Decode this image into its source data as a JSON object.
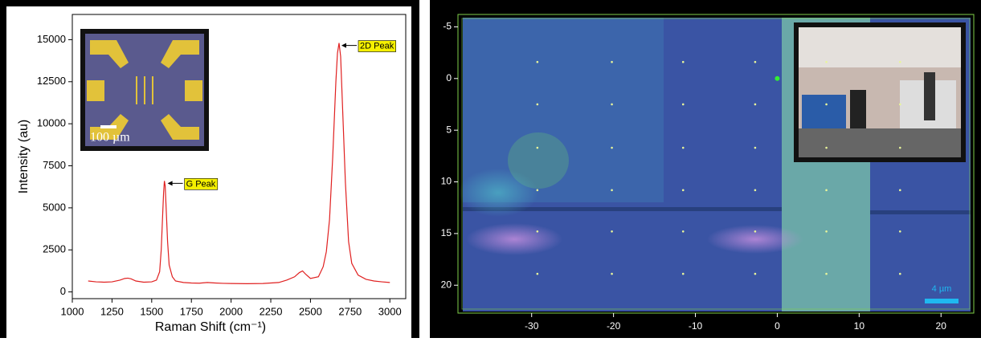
{
  "chart_data": [
    {
      "type": "line",
      "x_label": "Raman Shift (cm⁻¹)",
      "y_label": "Intensity (au)",
      "x": [
        1100,
        1150,
        1200,
        1250,
        1300,
        1330,
        1350,
        1370,
        1400,
        1450,
        1500,
        1530,
        1550,
        1560,
        1570,
        1575,
        1580,
        1585,
        1590,
        1600,
        1610,
        1630,
        1650,
        1700,
        1750,
        1800,
        1850,
        1900,
        1950,
        2000,
        2100,
        2200,
        2300,
        2350,
        2400,
        2430,
        2450,
        2470,
        2500,
        2550,
        2580,
        2600,
        2620,
        2640,
        2660,
        2670,
        2680,
        2690,
        2700,
        2720,
        2740,
        2760,
        2800,
        2850,
        2900,
        2950,
        3000
      ],
      "series": [
        {
          "color": "#e02020",
          "values": [
            650,
            600,
            580,
            600,
            700,
            800,
            820,
            780,
            650,
            580,
            600,
            700,
            1200,
            2500,
            4800,
            5900,
            6600,
            6300,
            5200,
            3000,
            1600,
            900,
            650,
            560,
            530,
            520,
            560,
            530,
            510,
            500,
            490,
            500,
            560,
            700,
            900,
            1150,
            1250,
            1050,
            800,
            900,
            1500,
            2400,
            4300,
            8000,
            12500,
            14200,
            14800,
            14000,
            11500,
            6500,
            3000,
            1700,
            1000,
            750,
            650,
            600,
            560
          ]
        }
      ],
      "xlim": [
        1000,
        3100
      ],
      "ylim": [
        -400,
        16500
      ],
      "xticks": [
        1000,
        1250,
        1500,
        1750,
        2000,
        2250,
        2500,
        2750,
        3000
      ],
      "yticks": [
        0,
        2500,
        5000,
        7500,
        10000,
        12500,
        15000
      ],
      "annotations": [
        {
          "text": "G Peak",
          "x": 1585,
          "y": 6600
        },
        {
          "text": "2D Peak",
          "x": 2680,
          "y": 14800
        }
      ],
      "inset_label": "100 µm"
    },
    {
      "type": "scatter",
      "y_inverted": true,
      "x": [
        -29.3,
        -20.2,
        -11.5,
        -2.7,
        6,
        15,
        -29.3,
        -20.2,
        -11.5,
        -2.7,
        6,
        15,
        -29.3,
        -20.2,
        -11.5,
        -2.7,
        6,
        15,
        -29.3,
        -20.2,
        -11.5,
        -2.7,
        6,
        15,
        -29.3,
        -20.2,
        -11.5,
        -2.7,
        6,
        15,
        -29.3,
        -20.2,
        -11.5,
        -2.7,
        6,
        15
      ],
      "values": [
        -1.6,
        -1.6,
        -1.6,
        -1.6,
        -1.6,
        -1.6,
        2.5,
        2.5,
        2.5,
        2.5,
        2.5,
        2.5,
        6.7,
        6.7,
        6.7,
        6.7,
        6.7,
        6.7,
        10.8,
        10.8,
        10.8,
        10.8,
        10.8,
        10.8,
        14.8,
        14.8,
        14.8,
        14.8,
        14.8,
        14.8,
        18.9,
        18.9,
        18.9,
        18.9,
        18.9,
        18.9
      ],
      "color": "#e8f59a",
      "highlight": {
        "x": 0,
        "y": 0,
        "color": "#33ee33"
      },
      "xlim": [
        -39,
        24
      ],
      "ylim": [
        -6.2,
        22.7
      ],
      "xticks": [
        -30,
        -20,
        -10,
        0,
        10,
        20
      ],
      "yticks": [
        -5,
        0,
        5,
        10,
        15,
        20
      ],
      "scale_bar": "4 µm"
    }
  ]
}
